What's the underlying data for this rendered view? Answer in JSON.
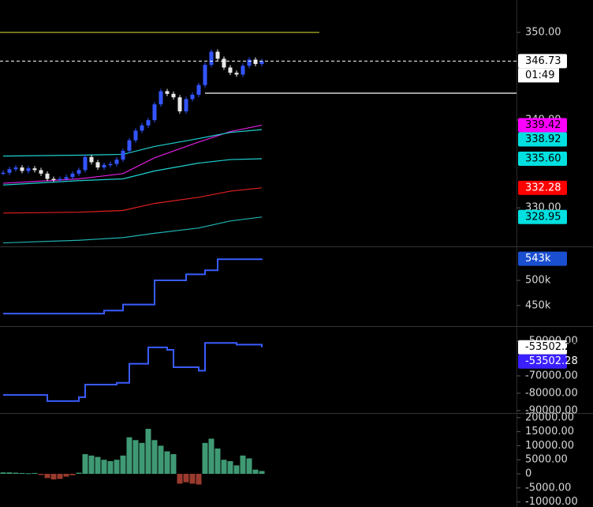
{
  "chart_data": [
    {
      "type": "candlestick",
      "x": [
        1,
        2,
        3,
        4,
        5,
        6,
        7,
        8,
        9,
        10,
        11,
        12,
        13,
        14,
        15,
        16,
        17,
        18,
        19,
        20,
        21,
        22,
        23,
        24,
        25,
        26,
        27,
        28,
        29,
        30,
        31,
        32,
        33,
        34,
        35,
        36,
        37,
        38,
        39,
        40,
        41,
        42
      ],
      "values": [
        334.0,
        334.4,
        334.6,
        334.2,
        334.5,
        334.3,
        333.9,
        333.3,
        333.2,
        333.3,
        333.5,
        333.9,
        334.3,
        335.8,
        335.2,
        334.6,
        334.9,
        335.0,
        335.5,
        336.5,
        337.7,
        338.8,
        339.4,
        340.0,
        341.8,
        343.3,
        343.0,
        342.6,
        341.0,
        342.4,
        342.9,
        344.0,
        346.3,
        347.8,
        347.0,
        346.0,
        345.4,
        345.2,
        346.2,
        346.9,
        346.4,
        346.73
      ],
      "color": "#3355ff",
      "down_color": "#e8e8e8",
      "ylim": [
        325.6,
        353.7
      ],
      "yticks": [
        {
          "value": 350,
          "label": "350.00"
        },
        {
          "value": 340,
          "label": "340.00"
        },
        {
          "value": 330,
          "label": "330.00"
        }
      ],
      "lines": [
        {
          "color": "#e020e0",
          "x": [
            1,
            13,
            20,
            25,
            32,
            37,
            42
          ],
          "values": [
            332.8,
            333.3,
            333.9,
            335.7,
            337.5,
            338.7,
            339.42
          ]
        },
        {
          "color": "#20d0d0",
          "x": [
            1,
            13,
            20,
            25,
            32,
            37,
            42
          ],
          "values": [
            335.9,
            336.0,
            336.1,
            337.0,
            337.9,
            338.6,
            338.92
          ]
        },
        {
          "color": "#20d0d0",
          "x": [
            1,
            13,
            20,
            25,
            32,
            37,
            42
          ],
          "values": [
            332.6,
            333.1,
            333.3,
            334.2,
            335.1,
            335.5,
            335.6
          ]
        },
        {
          "color": "#e02020",
          "x": [
            1,
            13,
            20,
            25,
            32,
            37,
            42
          ],
          "values": [
            329.4,
            329.5,
            329.7,
            330.5,
            331.2,
            331.9,
            332.28
          ]
        },
        {
          "color": "#20b0b0",
          "x": [
            1,
            13,
            20,
            25,
            32,
            37,
            42
          ],
          "values": [
            326.0,
            326.3,
            326.6,
            327.1,
            327.7,
            328.5,
            328.95
          ]
        }
      ],
      "levels": [
        {
          "value": 350,
          "color": "#c8c832"
        },
        {
          "value": 343.07,
          "color": "#ffffff"
        }
      ],
      "price_labels": [
        {
          "value": 346.73,
          "label": "346.73",
          "bg": "#ffffff",
          "fg": "#000000",
          "countdown": "01:49",
          "dashed": true
        },
        {
          "value": 339.42,
          "label": "339.42",
          "bg": "#ff00ff",
          "fg": "#000000"
        },
        {
          "value": 338.92,
          "label": "338.92",
          "bg": "#00e0e0",
          "fg": "#000000"
        },
        {
          "value": 335.6,
          "label": "335.60",
          "bg": "#00e0e0",
          "fg": "#000000"
        },
        {
          "value": 332.28,
          "label": "332.28",
          "bg": "#ff0000",
          "fg": "#ffffff"
        },
        {
          "value": 328.95,
          "label": "328.95",
          "bg": "#00e0e0",
          "fg": "#000000"
        }
      ]
    },
    {
      "type": "line",
      "x": [
        1,
        13,
        17,
        20,
        25,
        30,
        33,
        35,
        42
      ],
      "values": [
        434000,
        434000,
        440000,
        452000,
        500000,
        512000,
        520000,
        542000,
        543000
      ],
      "color": "#3a5cff",
      "ylim": [
        409000,
        566000
      ],
      "yticks": [
        {
          "value": 500000,
          "label": "500k"
        },
        {
          "value": 450000,
          "label": "450k"
        }
      ],
      "price_labels": [
        {
          "value": 543000,
          "label": "543k",
          "bg": "#1a4fd0",
          "fg": "#ffffff"
        }
      ]
    },
    {
      "type": "line",
      "x": [
        1,
        8,
        13,
        14,
        19,
        21,
        24,
        27,
        28,
        32,
        33,
        38,
        42
      ],
      "values": [
        -81000,
        -84500,
        -82300,
        -75000,
        -74000,
        -63000,
        -53600,
        -55000,
        -65000,
        -67000,
        -51000,
        -52000,
        -53502.28
      ],
      "color": "#3a5cff",
      "ylim": [
        -91400,
        -41800
      ],
      "yticks": [
        {
          "value": -50000,
          "label": "-50000.00"
        },
        {
          "value": -70000,
          "label": "-70000.00"
        },
        {
          "value": -80000,
          "label": "-80000.00"
        },
        {
          "value": -90000,
          "label": "-90000.00"
        }
      ],
      "price_labels": [
        {
          "value": -53502.28,
          "label": "-53502.28",
          "bg": "#ffffff",
          "fg": "#000000"
        },
        {
          "value": -53502.28,
          "label": "-53502.28",
          "bg": "#3a1fff",
          "fg": "#ffffff"
        }
      ]
    },
    {
      "type": "histogram",
      "x": [
        1,
        2,
        3,
        4,
        5,
        6,
        7,
        8,
        9,
        10,
        11,
        12,
        13,
        14,
        15,
        16,
        17,
        18,
        19,
        20,
        21,
        22,
        23,
        24,
        25,
        26,
        27,
        28,
        29,
        30,
        31,
        32,
        33,
        34,
        35,
        36,
        37,
        38,
        39,
        40,
        41,
        42
      ],
      "values": [
        500,
        500,
        400,
        300,
        200,
        300,
        -400,
        -1500,
        -2000,
        -1800,
        -1000,
        -500,
        400,
        7000,
        6500,
        6000,
        5000,
        4500,
        5000,
        6500,
        13000,
        12000,
        11000,
        16000,
        12000,
        10000,
        8000,
        7000,
        -3500,
        -3000,
        -3500,
        -3800,
        11000,
        12500,
        9000,
        5000,
        4500,
        3000,
        6500,
        5500,
        1500,
        1000
      ],
      "color": "#3f9a74",
      "down_color": "#9a3a2e",
      "ylim": [
        -11800,
        21350
      ],
      "yticks": [
        {
          "value": 20000,
          "label": "20000.00"
        },
        {
          "value": 15000,
          "label": "15000.00"
        },
        {
          "value": 10000,
          "label": "10000.00"
        },
        {
          "value": 5000,
          "label": "5000.00"
        },
        0,
        {
          "value": -5000,
          "label": "-5000.00"
        },
        {
          "value": -10000,
          "label": "-10000.00"
        }
      ]
    }
  ]
}
